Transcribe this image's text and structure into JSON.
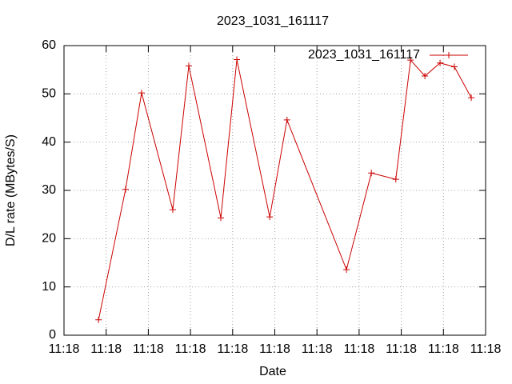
{
  "chart_data": {
    "type": "line",
    "title": "2023_1031_161117",
    "x_label": "Date",
    "y_label": "D/L rate (MBytes/S)",
    "x": [
      8.2,
      14.6,
      18.4,
      25.8,
      29.6,
      37.2,
      41.0,
      48.8,
      52.9,
      67.0,
      72.9,
      78.7,
      82.2,
      85.6,
      89.2,
      92.6,
      96.6
    ],
    "series": [
      {
        "name": "2023_1031_161117",
        "color": "#cc0000",
        "values": [
          3.2,
          30.2,
          50.2,
          26.0,
          55.8,
          24.3,
          57.1,
          24.5,
          44.6,
          13.6,
          33.6,
          32.3,
          57.0,
          53.7,
          56.4,
          55.6,
          49.2
        ]
      }
    ],
    "xlim": [
      0,
      100
    ],
    "xticks": [
      {
        "value": 0,
        "label": "11:18"
      },
      {
        "value": 10,
        "label": "11:18"
      },
      {
        "value": 20,
        "label": "11:18"
      },
      {
        "value": 30,
        "label": "11:18"
      },
      {
        "value": 40,
        "label": "11:18"
      },
      {
        "value": 50,
        "label": "11:18"
      },
      {
        "value": 60,
        "label": "11:18"
      },
      {
        "value": 70,
        "label": "11:18"
      },
      {
        "value": 80,
        "label": "11:18"
      },
      {
        "value": 90,
        "label": "11:18"
      },
      {
        "value": 100,
        "label": "11:18"
      }
    ],
    "ylim": [
      0,
      60
    ],
    "yticks": [
      0,
      10,
      20,
      30,
      40,
      50,
      60
    ],
    "grid": true,
    "legend": "upper right"
  }
}
